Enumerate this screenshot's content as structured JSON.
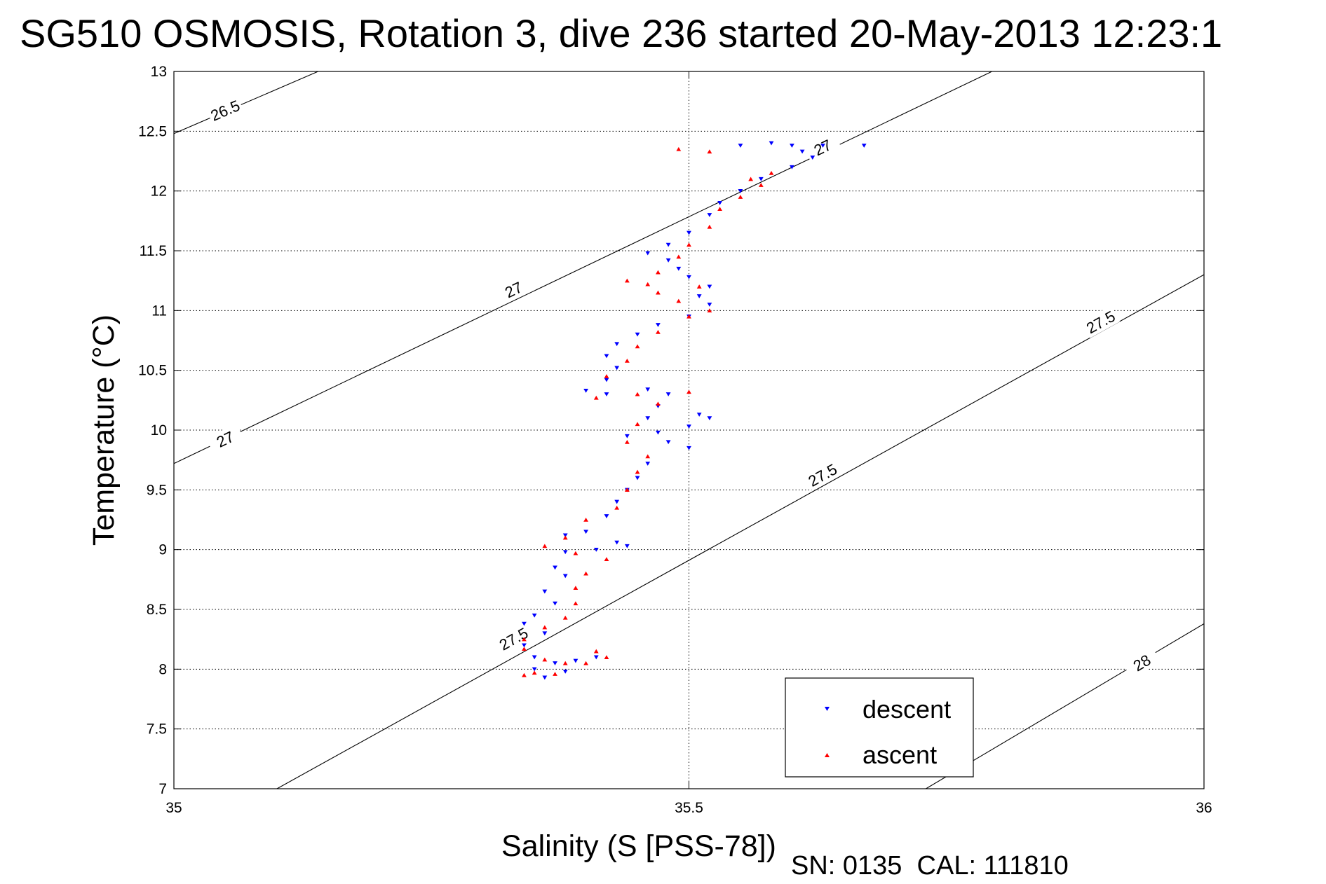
{
  "chart_data": {
    "type": "scatter",
    "title": "SG510 OSMOSIS, Rotation 3, dive 236 started 20-May-2013 12:23:1",
    "xlabel": "Salinity (S [PSS-78])",
    "ylabel": "Temperature (°C)",
    "footer": "SN: 0135  CAL: 111810",
    "xlim": [
      35,
      36
    ],
    "ylim": [
      7,
      13
    ],
    "x_ticks": [
      35,
      35.5,
      36
    ],
    "x_tick_labels": [
      "35",
      "35.5",
      "36"
    ],
    "y_ticks": [
      7,
      7.5,
      8,
      8.5,
      9,
      9.5,
      10,
      10.5,
      11,
      11.5,
      12,
      12.5,
      13
    ],
    "y_tick_labels": [
      "7",
      "7.5",
      "8",
      "8.5",
      "9",
      "9.5",
      "10",
      "10.5",
      "11",
      "11.5",
      "12",
      "12.5",
      "13"
    ],
    "grid": true,
    "legend_position": "bottom-right",
    "density_contours": [
      {
        "label": "26.5",
        "points": [
          [
            35.0,
            12.48
          ],
          [
            35.14,
            13.0
          ]
        ]
      },
      {
        "label": "27",
        "points": [
          [
            35.0,
            9.72
          ],
          [
            36.0,
            13.85
          ]
        ]
      },
      {
        "label": "27.5",
        "points": [
          [
            35.1,
            7.0
          ],
          [
            36.0,
            11.3
          ]
        ]
      },
      {
        "label": "28",
        "points": [
          [
            35.73,
            7.0
          ],
          [
            36.0,
            8.38
          ]
        ]
      }
    ],
    "contour_label_positions": [
      {
        "label": "26.5",
        "x": 35.05,
        "y": 12.67
      },
      {
        "label": "27",
        "x": 35.05,
        "y": 9.92
      },
      {
        "label": "27",
        "x": 35.33,
        "y": 11.17
      },
      {
        "label": "27",
        "x": 35.63,
        "y": 12.36
      },
      {
        "label": "27.5",
        "x": 35.33,
        "y": 8.25
      },
      {
        "label": "27.5",
        "x": 35.63,
        "y": 9.62
      },
      {
        "label": "27.5",
        "x": 35.9,
        "y": 10.9
      },
      {
        "label": "28",
        "x": 35.94,
        "y": 8.05
      }
    ],
    "series": [
      {
        "name": "descent",
        "color": "#0000ff",
        "marker": "triangle-down",
        "points": [
          [
            35.6,
            12.38
          ],
          [
            35.58,
            12.4
          ],
          [
            35.55,
            12.38
          ],
          [
            35.63,
            12.38
          ],
          [
            35.67,
            12.38
          ],
          [
            35.61,
            12.33
          ],
          [
            35.62,
            12.28
          ],
          [
            35.6,
            12.2
          ],
          [
            35.57,
            12.1
          ],
          [
            35.55,
            12.0
          ],
          [
            35.53,
            11.9
          ],
          [
            35.52,
            11.8
          ],
          [
            35.5,
            11.65
          ],
          [
            35.48,
            11.55
          ],
          [
            35.46,
            11.48
          ],
          [
            35.48,
            11.42
          ],
          [
            35.49,
            11.35
          ],
          [
            35.5,
            11.28
          ],
          [
            35.52,
            11.2
          ],
          [
            35.51,
            11.12
          ],
          [
            35.52,
            11.05
          ],
          [
            35.5,
            10.95
          ],
          [
            35.47,
            10.88
          ],
          [
            35.45,
            10.8
          ],
          [
            35.43,
            10.72
          ],
          [
            35.42,
            10.62
          ],
          [
            35.43,
            10.52
          ],
          [
            35.42,
            10.42
          ],
          [
            35.4,
            10.33
          ],
          [
            35.42,
            10.3
          ],
          [
            35.46,
            10.34
          ],
          [
            35.48,
            10.3
          ],
          [
            35.47,
            10.2
          ],
          [
            35.46,
            10.1
          ],
          [
            35.51,
            10.13
          ],
          [
            35.52,
            10.1
          ],
          [
            35.5,
            10.03
          ],
          [
            35.47,
            9.98
          ],
          [
            35.44,
            9.95
          ],
          [
            35.48,
            9.9
          ],
          [
            35.5,
            9.85
          ],
          [
            35.46,
            9.72
          ],
          [
            35.45,
            9.6
          ],
          [
            35.44,
            9.5
          ],
          [
            35.43,
            9.4
          ],
          [
            35.42,
            9.28
          ],
          [
            35.4,
            9.15
          ],
          [
            35.38,
            9.12
          ],
          [
            35.43,
            9.06
          ],
          [
            35.44,
            9.03
          ],
          [
            35.41,
            9.0
          ],
          [
            35.38,
            8.98
          ],
          [
            35.37,
            8.85
          ],
          [
            35.38,
            8.78
          ],
          [
            35.36,
            8.65
          ],
          [
            35.37,
            8.55
          ],
          [
            35.35,
            8.45
          ],
          [
            35.34,
            8.38
          ],
          [
            35.36,
            8.3
          ],
          [
            35.34,
            8.2
          ],
          [
            35.35,
            8.1
          ],
          [
            35.37,
            8.05
          ],
          [
            35.39,
            8.07
          ],
          [
            35.41,
            8.1
          ],
          [
            35.38,
            7.98
          ],
          [
            35.36,
            7.93
          ],
          [
            35.35,
            8.0
          ]
        ]
      },
      {
        "name": "ascent",
        "color": "#ff0000",
        "marker": "triangle-up",
        "points": [
          [
            35.34,
            7.95
          ],
          [
            35.35,
            7.97
          ],
          [
            35.37,
            7.96
          ],
          [
            35.38,
            8.05
          ],
          [
            35.41,
            8.15
          ],
          [
            35.42,
            8.1
          ],
          [
            35.4,
            8.05
          ],
          [
            35.36,
            8.08
          ],
          [
            35.34,
            8.17
          ],
          [
            35.34,
            8.25
          ],
          [
            35.36,
            8.35
          ],
          [
            35.38,
            8.43
          ],
          [
            35.39,
            8.55
          ],
          [
            35.39,
            8.68
          ],
          [
            35.4,
            8.8
          ],
          [
            35.42,
            8.92
          ],
          [
            35.39,
            8.97
          ],
          [
            35.36,
            9.03
          ],
          [
            35.38,
            9.1
          ],
          [
            35.4,
            9.25
          ],
          [
            35.43,
            9.35
          ],
          [
            35.44,
            9.5
          ],
          [
            35.45,
            9.65
          ],
          [
            35.46,
            9.78
          ],
          [
            35.44,
            9.9
          ],
          [
            35.45,
            10.05
          ],
          [
            35.47,
            10.22
          ],
          [
            35.5,
            10.32
          ],
          [
            35.45,
            10.3
          ],
          [
            35.41,
            10.27
          ],
          [
            35.42,
            10.45
          ],
          [
            35.44,
            10.58
          ],
          [
            35.45,
            10.7
          ],
          [
            35.47,
            10.82
          ],
          [
            35.5,
            10.95
          ],
          [
            35.52,
            11.0
          ],
          [
            35.49,
            11.08
          ],
          [
            35.47,
            11.15
          ],
          [
            35.51,
            11.2
          ],
          [
            35.46,
            11.22
          ],
          [
            35.44,
            11.25
          ],
          [
            35.47,
            11.32
          ],
          [
            35.49,
            11.45
          ],
          [
            35.5,
            11.55
          ],
          [
            35.52,
            11.7
          ],
          [
            35.53,
            11.85
          ],
          [
            35.55,
            11.95
          ],
          [
            35.57,
            12.05
          ],
          [
            35.58,
            12.15
          ],
          [
            35.56,
            12.1
          ],
          [
            35.52,
            12.33
          ],
          [
            35.49,
            12.35
          ]
        ]
      }
    ]
  }
}
